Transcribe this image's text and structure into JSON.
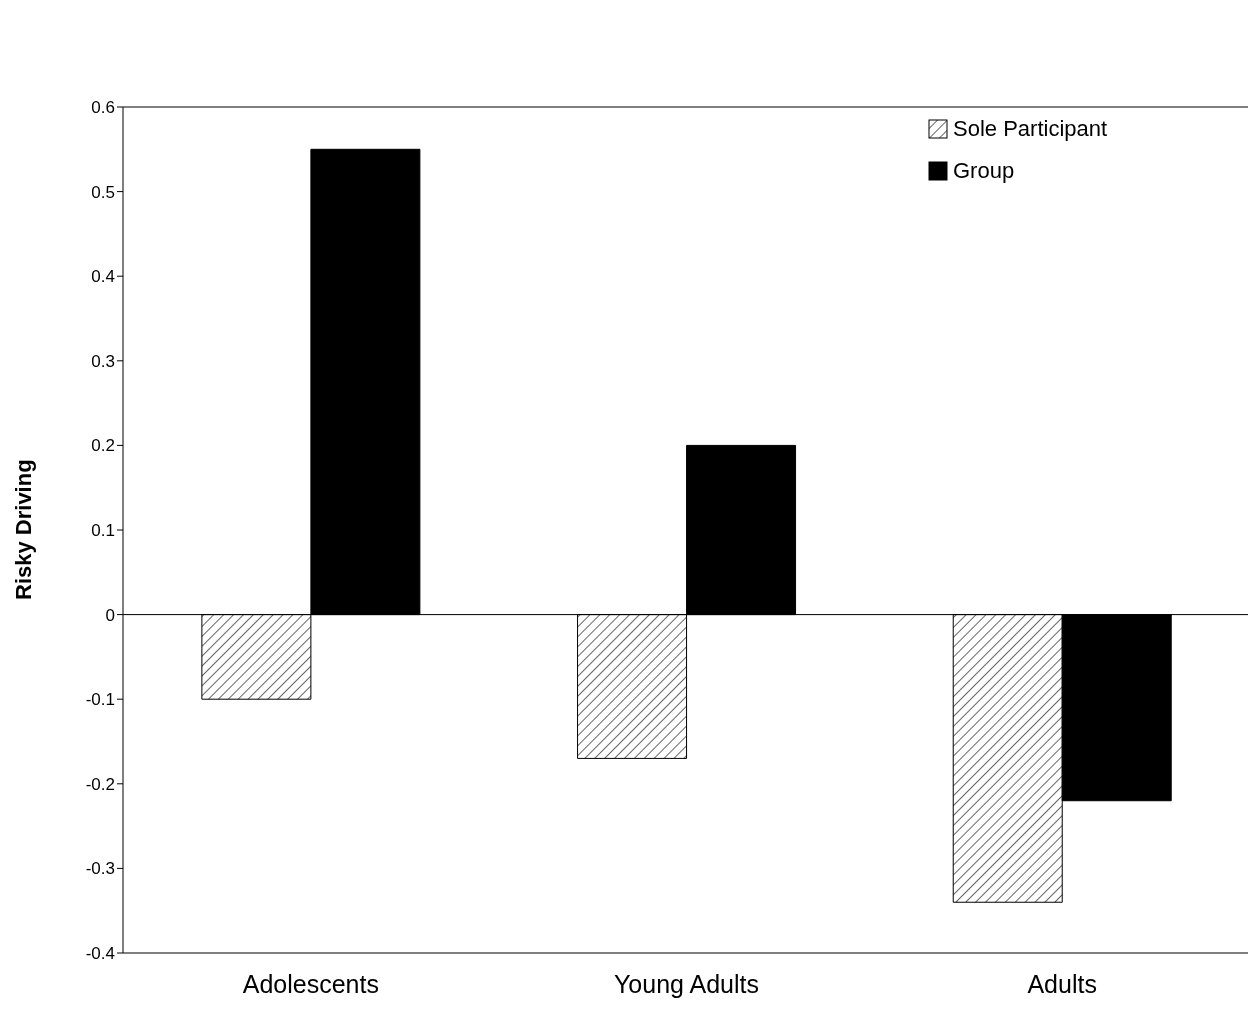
{
  "chart_data": {
    "type": "bar",
    "ylabel": "Risky Driving",
    "categories": [
      "Adolescents",
      "Young Adults",
      "Adults"
    ],
    "series": [
      {
        "name": "Sole Participant",
        "color": "#000000",
        "values": [
          -0.1,
          -0.17,
          -0.34
        ]
      },
      {
        "name": "Group",
        "color": "#000000",
        "values": [
          0.55,
          0.2,
          -0.22
        ]
      }
    ],
    "ylim": [
      -0.4,
      0.6
    ],
    "yticks": [
      -0.4,
      -0.3,
      -0.2,
      -0.1,
      0,
      0.1,
      0.2,
      0.3,
      0.4,
      0.5,
      0.6
    ],
    "ref_lines": [
      {
        "axis": "y",
        "value": 0,
        "label": null
      }
    ],
    "grid": false,
    "legend": "top right"
  }
}
